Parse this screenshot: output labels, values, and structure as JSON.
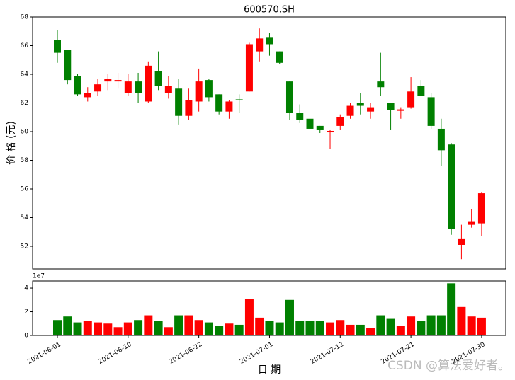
{
  "chart_data": {
    "type": "candlestick",
    "title": "600570.SH",
    "ylabel": "价 格 (元)",
    "xlabel": "日 期",
    "watermark": "CSDN @算法爱好者。",
    "categories": [
      "2021-06-01",
      null,
      null,
      null,
      null,
      null,
      null,
      "2021-06-10",
      null,
      null,
      null,
      null,
      null,
      null,
      "2021-06-22",
      null,
      null,
      null,
      null,
      null,
      null,
      "2021-07-01",
      null,
      null,
      null,
      null,
      null,
      null,
      "2021-07-12",
      null,
      null,
      null,
      null,
      null,
      null,
      "2021-07-21",
      null,
      null,
      null,
      null,
      null,
      null,
      "2021-07-30"
    ],
    "open": [
      66.4,
      65.7,
      63.9,
      62.4,
      62.8,
      63.5,
      63.5,
      62.7,
      63.5,
      62.1,
      64.2,
      62.7,
      63.0,
      61.1,
      62.1,
      63.6,
      62.6,
      61.4,
      62.25,
      62.8,
      65.6,
      66.6,
      65.6,
      63.5,
      61.3,
      60.9,
      60.4,
      59.95,
      60.4,
      61.1,
      62.0,
      61.4,
      63.5,
      62.0,
      61.45,
      61.7,
      63.2,
      62.4,
      60.2,
      59.1,
      52.1,
      53.5,
      53.6
    ],
    "high": [
      67.1,
      65.7,
      64.0,
      63.1,
      63.7,
      64.0,
      64.1,
      64.0,
      64.1,
      64.9,
      65.6,
      63.9,
      63.7,
      63.0,
      64.4,
      63.7,
      62.6,
      62.2,
      62.6,
      66.2,
      67.2,
      66.9,
      65.6,
      63.5,
      61.9,
      61.2,
      60.4,
      60.1,
      61.2,
      62.0,
      62.7,
      62.0,
      65.5,
      62.0,
      61.7,
      63.8,
      63.6,
      62.7,
      60.9,
      59.2,
      53.5,
      54.6,
      55.8
    ],
    "low": [
      64.8,
      63.3,
      62.5,
      62.1,
      62.5,
      62.9,
      63.0,
      62.5,
      62.0,
      62.0,
      62.9,
      62.3,
      60.5,
      60.8,
      61.4,
      62.1,
      61.2,
      60.9,
      61.3,
      62.8,
      64.9,
      65.3,
      64.7,
      60.8,
      60.6,
      59.9,
      59.9,
      58.8,
      60.1,
      60.9,
      61.2,
      60.9,
      62.5,
      60.1,
      60.9,
      61.6,
      62.5,
      60.2,
      57.6,
      52.8,
      51.1,
      53.3,
      52.7
    ],
    "close": [
      65.5,
      63.6,
      62.6,
      62.7,
      63.3,
      63.7,
      63.6,
      63.5,
      62.7,
      64.6,
      63.2,
      63.2,
      61.1,
      62.2,
      63.5,
      62.4,
      61.4,
      62.1,
      62.2,
      66.1,
      66.5,
      66.1,
      64.8,
      61.3,
      60.8,
      60.2,
      60.1,
      60.05,
      61.0,
      61.8,
      61.8,
      61.7,
      63.1,
      61.5,
      61.55,
      62.8,
      62.5,
      60.4,
      58.7,
      53.2,
      52.5,
      53.7,
      55.7
    ],
    "volume": [
      1.3,
      1.6,
      1.1,
      1.2,
      1.1,
      1.0,
      0.7,
      1.1,
      1.3,
      1.7,
      1.2,
      0.7,
      1.7,
      1.7,
      1.3,
      1.1,
      0.8,
      1.0,
      0.9,
      3.1,
      1.5,
      1.2,
      1.1,
      3.0,
      1.2,
      1.2,
      1.2,
      1.1,
      1.3,
      0.9,
      0.9,
      0.6,
      1.7,
      1.4,
      0.8,
      1.6,
      1.2,
      1.7,
      1.7,
      4.4,
      2.4,
      1.6,
      1.5
    ],
    "up_color": "#ff0000",
    "down_color": "#008000",
    "ylim": [
      50.42,
      68
    ],
    "yticks": [
      52,
      54,
      56,
      58,
      60,
      62,
      64,
      66,
      68
    ],
    "volume_ylim": [
      0,
      4.6
    ],
    "volume_yticks": [
      0,
      2,
      4
    ],
    "volume_scale_label": "1e7"
  }
}
